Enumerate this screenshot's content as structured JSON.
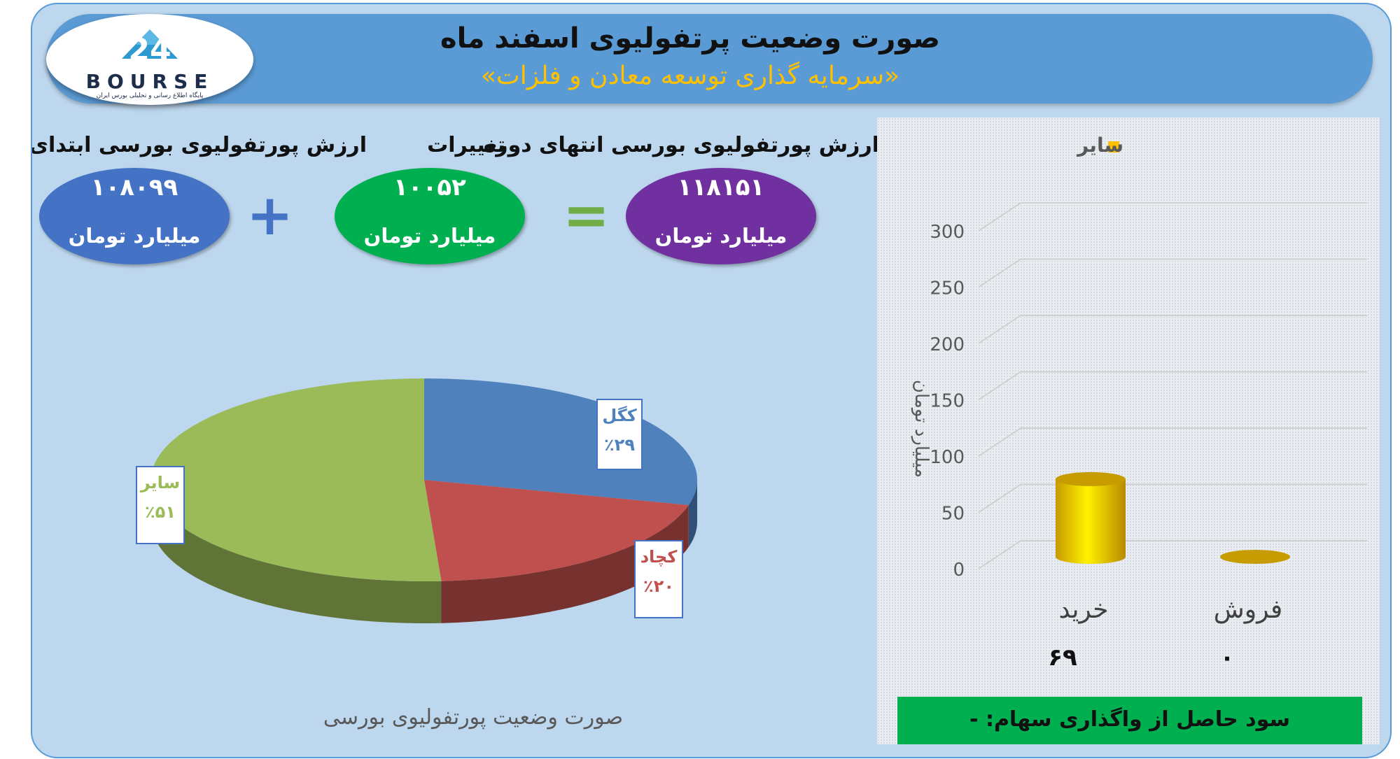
{
  "header": {
    "title": "صورت وضعیت پرتفولیوی اسفند ماه",
    "subtitle": "«سرمایه گذاری توسعه معادن و فلزات»"
  },
  "logo": {
    "mark": "24",
    "word": "BOURSE",
    "caption": "پایگاه اطلاع رسانی و تحلیلی بورس ایران"
  },
  "summary": {
    "start": {
      "label": "ارزش پورتفولیوی بورسی ابتدای دوره",
      "value": "۱۰۸۰۹۹",
      "unit": "میلیارد تومان",
      "color": "#4472c4"
    },
    "change": {
      "label": "تغییرات",
      "value": "۱۰۰۵۲",
      "unit": "میلیارد تومان",
      "color": "#00b050"
    },
    "end": {
      "label": "ارزش پورتفولیوی بورسی انتهای دوره",
      "value": "۱۱۸۱۵۱",
      "unit": "میلیارد تومان",
      "color": "#7030a0"
    },
    "plus_sign": "+",
    "equals_sign": "=",
    "plus_color": "#4472c4",
    "equals_color": "#70ad47"
  },
  "profit_box": {
    "text": "سود حاصل از واگذاری سهام: -"
  },
  "chart_data": [
    {
      "type": "pie",
      "title": "صورت وضعیت پورتفولیوی بورسی",
      "slices": [
        {
          "name": "کگل",
          "value": 29,
          "label": "٪۲۹",
          "color": "#4f81bd"
        },
        {
          "name": "کچاد",
          "value": 20,
          "label": "٪۲۰",
          "color": "#c0504d"
        },
        {
          "name": "سایر",
          "value": 51,
          "label": "٪۵۱",
          "color": "#9bbb59"
        }
      ]
    },
    {
      "type": "bar",
      "categories": [
        "خرید",
        "فروش"
      ],
      "values": [
        69,
        0
      ],
      "value_labels": [
        "۶۹",
        "۰"
      ],
      "series": [
        {
          "name": "سایر",
          "values": [
            69,
            0
          ],
          "color": "#ffc000"
        }
      ],
      "ylabel": "میلیارد تومان",
      "ylim": [
        0,
        300
      ],
      "yticks": [
        0,
        50,
        100,
        150,
        200,
        250,
        300
      ],
      "grid": true,
      "legend": "top"
    }
  ]
}
